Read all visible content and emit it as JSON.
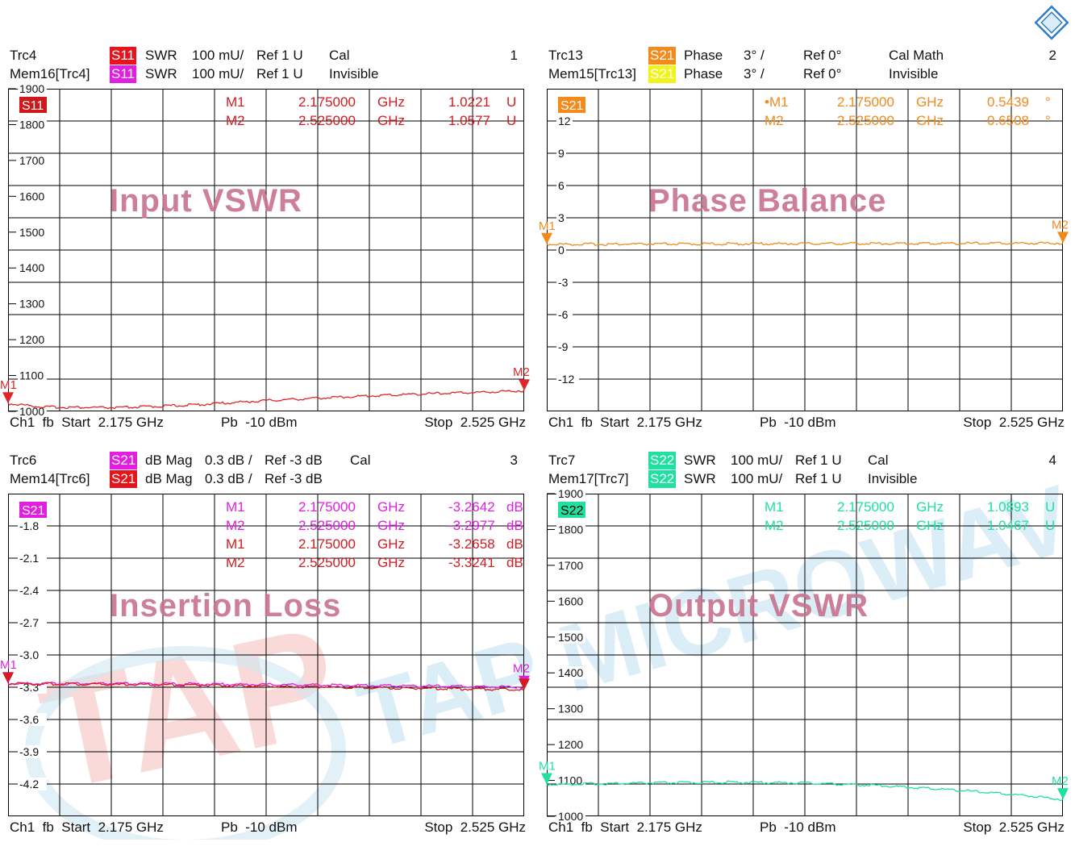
{
  "charts": [
    {
      "number": "1",
      "trc": "Trc4",
      "trc_sig": "S11",
      "trc_sig_color": "#e8141c",
      "trc_fmt": "SWR",
      "trc_scale": "100 mU/",
      "trc_ref": "Ref 1 U",
      "trc_extra": "Cal",
      "mem": "Mem16[Trc4]",
      "mem_sig": "S11",
      "mem_sig_color": "#e21fe0",
      "mem_fmt": "SWR",
      "mem_scale": "100 mU/",
      "mem_ref": "Ref 1 U",
      "mem_extra": "Invisible",
      "box_label": "S11",
      "box_color": "#d01818",
      "watermark_title": "Input VSWR",
      "footer_left": "Ch1  fb  Start  2.175 GHz",
      "footer_mid": "Pb  -10 dBm",
      "footer_right": "Stop  2.525 GHz",
      "markers": [
        {
          "name": "M1",
          "freq": "2.175000",
          "unit": "GHz",
          "value": "1.0221",
          "vunit": "U",
          "color": "#d21c22"
        },
        {
          "name": "M2",
          "freq": "2.525000",
          "unit": "GHz",
          "value": "1.0577",
          "vunit": "U",
          "color": "#d21c22"
        }
      ]
    },
    {
      "number": "2",
      "trc": "Trc13",
      "trc_sig": "S21",
      "trc_sig_color": "#f28a1c",
      "trc_fmt": "Phase",
      "trc_scale": "3° /",
      "trc_ref": "Ref 0°",
      "trc_extra": "Cal Math",
      "mem": "Mem15[Trc13]",
      "mem_sig": "S21",
      "mem_sig_color": "#f2f21c",
      "mem_fmt": "Phase",
      "mem_scale": "3° /",
      "mem_ref": "Ref 0°",
      "mem_extra": "Invisible",
      "box_label": "S21",
      "box_color": "#f28a1c",
      "watermark_title": "Phase Balance",
      "footer_left": "Ch1  fb  Start  2.175 GHz",
      "footer_mid": "Pb  -10 dBm",
      "footer_right": "Stop  2.525 GHz",
      "markers": [
        {
          "name": "•M1",
          "freq": "2.175000",
          "unit": "GHz",
          "value": "0.5439",
          "vunit": "°",
          "color": "#f08a1c"
        },
        {
          "name": "M2",
          "freq": "2.525000",
          "unit": "GHz",
          "value": "0.6508",
          "vunit": "°",
          "color": "#f08a1c"
        }
      ]
    },
    {
      "number": "3",
      "trc": "Trc6",
      "trc_sig": "S21",
      "trc_sig_color": "#e21fe0",
      "trc_fmt": "dB Mag",
      "trc_scale": "0.3 dB /",
      "trc_ref": "Ref -3 dB",
      "trc_extra": "Cal",
      "mem": "Mem14[Trc6]",
      "mem_sig": "S21",
      "mem_sig_color": "#e8141c",
      "mem_fmt": "dB Mag",
      "mem_scale": "0.3 dB /",
      "mem_ref": "Ref -3 dB",
      "mem_extra": "",
      "box_label": "S21",
      "box_color": "#e21fe0",
      "watermark_title": "Insertion Loss",
      "footer_left": "Ch1  fb  Start  2.175 GHz",
      "footer_mid": "Pb  -10 dBm",
      "footer_right": "Stop  2.525 GHz",
      "markers": [
        {
          "name": "M1",
          "freq": "2.175000",
          "unit": "GHz",
          "value": "-3.2642",
          "vunit": "dB",
          "color": "#e21fe0"
        },
        {
          "name": "M2",
          "freq": "2.525000",
          "unit": "GHz",
          "value": "-3.2977",
          "vunit": "dB",
          "color": "#e21fe0"
        },
        {
          "name": "M1",
          "freq": "2.175000",
          "unit": "GHz",
          "value": "-3.2658",
          "vunit": "dB",
          "color": "#d21c22"
        },
        {
          "name": "M2",
          "freq": "2.525000",
          "unit": "GHz",
          "value": "-3.3241",
          "vunit": "dB",
          "color": "#d21c22"
        }
      ]
    },
    {
      "number": "4",
      "trc": "Trc7",
      "trc_sig": "S22",
      "trc_sig_color": "#1fe0a0",
      "trc_fmt": "SWR",
      "trc_scale": "100 mU/",
      "trc_ref": "Ref 1 U",
      "trc_extra": "Cal",
      "mem": "Mem17[Trc7]",
      "mem_sig": "S22",
      "mem_sig_color": "#1fe0a0",
      "mem_fmt": "SWR",
      "mem_scale": "100 mU/",
      "mem_ref": "Ref 1 U",
      "mem_extra": "Invisible",
      "box_label": "S22",
      "box_color": "#1fe0a0",
      "watermark_title": "Output VSWR",
      "footer_left": "Ch1  fb  Start  2.175 GHz",
      "footer_mid": "Pb  -10 dBm",
      "footer_right": "Stop  2.525 GHz",
      "markers": [
        {
          "name": "M1",
          "freq": "2.175000",
          "unit": "GHz",
          "value": "1.0893",
          "vunit": "U",
          "color": "#1fe0a0"
        },
        {
          "name": "M2",
          "freq": "2.525000",
          "unit": "GHz",
          "value": "1.0467",
          "vunit": "U",
          "color": "#1fe0a0"
        }
      ]
    }
  ],
  "chart_data": [
    {
      "type": "line",
      "x_range": [
        2.175,
        2.525
      ],
      "x_unit": "GHz",
      "ylim": [
        1000,
        1900
      ],
      "y_ticks": [
        "1900",
        "1800",
        "1700",
        "1600",
        "1500",
        "1400",
        "1300",
        "1200",
        "1100",
        "1000"
      ],
      "grid": true,
      "series": [
        {
          "color": "#e0262a",
          "x": [
            2.175,
            2.2,
            2.25,
            2.3,
            2.35,
            2.4,
            2.45,
            2.5,
            2.525
          ],
          "y": [
            1022,
            1012,
            1010,
            1018,
            1030,
            1040,
            1048,
            1054,
            1058
          ]
        }
      ],
      "marker_x": [
        2.175,
        2.525
      ]
    },
    {
      "type": "line",
      "x_range": [
        2.175,
        2.525
      ],
      "x_unit": "GHz",
      "ylim": [
        -15,
        15
      ],
      "y_ticks": [
        "12",
        "9",
        "6",
        "3",
        "0",
        "-3",
        "-6",
        "-9",
        "-12"
      ],
      "grid": true,
      "series": [
        {
          "color": "#f08a1c",
          "x": [
            2.175,
            2.25,
            2.35,
            2.45,
            2.525
          ],
          "y": [
            0.54,
            0.55,
            0.6,
            0.62,
            0.65
          ]
        }
      ],
      "marker_x": [
        2.175,
        2.525
      ]
    },
    {
      "type": "line",
      "x_range": [
        2.175,
        2.525
      ],
      "x_unit": "GHz",
      "ylim": [
        -4.5,
        -1.5
      ],
      "y_ticks": [
        "-1.8",
        "-2.1",
        "-2.4",
        "-2.7",
        "-3.0",
        "-3.3",
        "-3.6",
        "-3.9",
        "-4.2"
      ],
      "grid": true,
      "series": [
        {
          "color": "#e21fe0",
          "x": [
            2.175,
            2.3,
            2.4,
            2.525
          ],
          "y": [
            -3.264,
            -3.27,
            -3.28,
            -3.298
          ]
        },
        {
          "color": "#d21c22",
          "x": [
            2.175,
            2.3,
            2.4,
            2.525
          ],
          "y": [
            -3.266,
            -3.28,
            -3.3,
            -3.324
          ]
        }
      ],
      "marker_x": [
        2.175,
        2.525
      ]
    },
    {
      "type": "line",
      "x_range": [
        2.175,
        2.525
      ],
      "x_unit": "GHz",
      "ylim": [
        1000,
        1900
      ],
      "y_ticks": [
        "1900",
        "1800",
        "1700",
        "1600",
        "1500",
        "1400",
        "1300",
        "1200",
        "1100",
        "1000"
      ],
      "grid": true,
      "series": [
        {
          "color": "#1fe0a0",
          "x": [
            2.175,
            2.25,
            2.3,
            2.35,
            2.4,
            2.45,
            2.5,
            2.525
          ],
          "y": [
            1089,
            1093,
            1095,
            1093,
            1086,
            1074,
            1058,
            1047
          ]
        }
      ],
      "marker_x": [
        2.175,
        2.525
      ]
    }
  ],
  "watermark": {
    "text": "TAP MICROWAV",
    "color": "#bfe3f1"
  }
}
